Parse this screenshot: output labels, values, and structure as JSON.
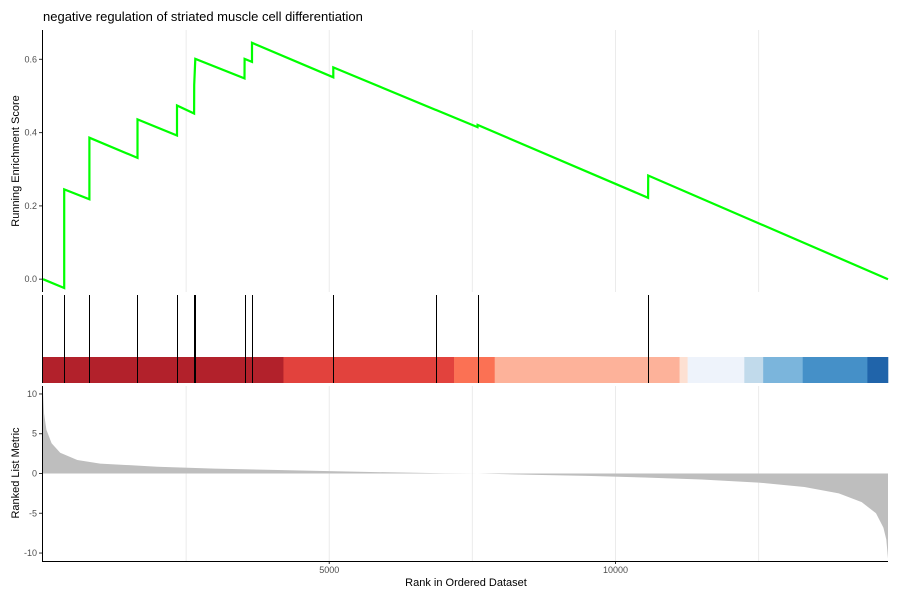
{
  "chart_data": [
    {
      "panel": "running-enrichment",
      "type": "line",
      "title": "negative regulation of striated muscle cell differentiation",
      "ylabel": "Running Enrichment Score",
      "xlim": [
        0,
        14760
      ],
      "ylim": [
        -0.035,
        0.68
      ],
      "yticks": [
        0.0,
        0.2,
        0.4,
        0.6
      ],
      "ytick_labels": [
        "0.0",
        "0.2",
        "0.4",
        "0.6"
      ],
      "line_color": "#00ff00",
      "grid": "vertical-only",
      "points": [
        [
          0,
          0.0
        ],
        [
          370,
          -0.024
        ],
        [
          371,
          0.245
        ],
        [
          810,
          0.218
        ],
        [
          811,
          0.386
        ],
        [
          1650,
          0.331
        ],
        [
          1651,
          0.436
        ],
        [
          2340,
          0.392
        ],
        [
          2341,
          0.474
        ],
        [
          2640,
          0.452
        ],
        [
          2641,
          0.53
        ],
        [
          2660,
          0.601
        ],
        [
          3520,
          0.548
        ],
        [
          3521,
          0.601
        ],
        [
          3650,
          0.593
        ],
        [
          3651,
          0.645
        ],
        [
          5070,
          0.551
        ],
        [
          5071,
          0.578
        ],
        [
          6860,
          0.462
        ],
        [
          6861,
          0.462
        ],
        [
          7590,
          0.415
        ],
        [
          7591,
          0.421
        ],
        [
          10570,
          0.222
        ],
        [
          10571,
          0.283
        ],
        [
          14760,
          0.0
        ]
      ]
    },
    {
      "panel": "gene-hits",
      "type": "rug",
      "positions": [
        370,
        810,
        1650,
        2340,
        2640,
        2660,
        3520,
        3650,
        5070,
        6860,
        7590,
        10570
      ],
      "color_bands": [
        {
          "from": 0,
          "to": 4200,
          "color": "#b2212b"
        },
        {
          "from": 4200,
          "to": 7180,
          "color": "#e2423d"
        },
        {
          "from": 7180,
          "to": 7890,
          "color": "#fb7154"
        },
        {
          "from": 7890,
          "to": 11120,
          "color": "#fdb29a"
        },
        {
          "from": 11120,
          "to": 11260,
          "color": "#fde0d2"
        },
        {
          "from": 11260,
          "to": 12250,
          "color": "#eef3fb"
        },
        {
          "from": 12250,
          "to": 12580,
          "color": "#c1daeb"
        },
        {
          "from": 12580,
          "to": 13270,
          "color": "#7bb5dc"
        },
        {
          "from": 13270,
          "to": 14400,
          "color": "#4590c8"
        },
        {
          "from": 14400,
          "to": 14760,
          "color": "#2064aa"
        }
      ]
    },
    {
      "panel": "ranked-list",
      "type": "area",
      "ylabel": "Ranked List Metric",
      "xlabel": "Rank in Ordered Dataset",
      "xlim": [
        0,
        14760
      ],
      "ylim": [
        -11,
        11
      ],
      "yticks": [
        10,
        5,
        0,
        -5,
        -10
      ],
      "ytick_labels": [
        "10",
        "5",
        "0",
        "-5",
        "-10"
      ],
      "xticks": [
        5000,
        10000
      ],
      "xtick_labels": [
        "5000",
        "10000"
      ],
      "fill_color": "#bebebe",
      "grid": "vertical-only",
      "points": [
        [
          0,
          10.2
        ],
        [
          20,
          7.5
        ],
        [
          60,
          5.5
        ],
        [
          150,
          3.8
        ],
        [
          300,
          2.6
        ],
        [
          600,
          1.7
        ],
        [
          1000,
          1.25
        ],
        [
          2000,
          0.85
        ],
        [
          3000,
          0.62
        ],
        [
          4000,
          0.45
        ],
        [
          5000,
          0.3
        ],
        [
          6000,
          0.15
        ],
        [
          7000,
          0.04
        ],
        [
          7600,
          0.0
        ],
        [
          8500,
          -0.15
        ],
        [
          9500,
          -0.3
        ],
        [
          10500,
          -0.5
        ],
        [
          11500,
          -0.75
        ],
        [
          12500,
          -1.15
        ],
        [
          13300,
          -1.7
        ],
        [
          13900,
          -2.5
        ],
        [
          14300,
          -3.6
        ],
        [
          14550,
          -5.0
        ],
        [
          14680,
          -6.8
        ],
        [
          14730,
          -8.3
        ],
        [
          14760,
          -10.7
        ]
      ]
    }
  ]
}
